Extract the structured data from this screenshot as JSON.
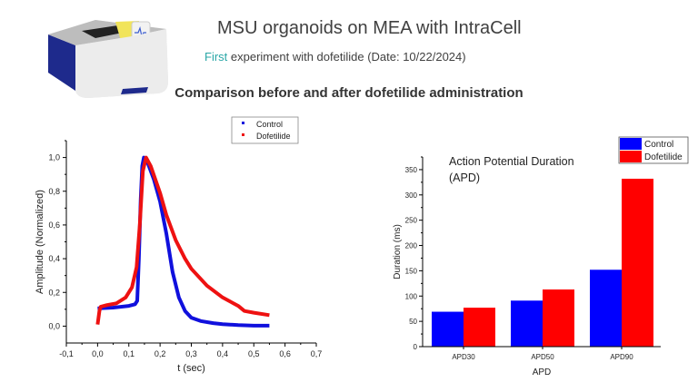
{
  "header": {
    "title": "MSU organoids on MEA with IntraCell",
    "subtitle_highlight": "First",
    "subtitle_rest": " experiment with dofetilide (Date: 10/22/2024)",
    "heading": "Comparison before and after dofetilide administration",
    "highlight_color": "#2aa7a7"
  },
  "chart_data": [
    {
      "type": "line",
      "title": "",
      "xlabel": "t (sec)",
      "ylabel": "Amplitude (Normalized)",
      "xlim": [
        -0.1,
        0.7
      ],
      "ylim": [
        -0.1,
        1.1
      ],
      "xticks": [
        -0.1,
        0,
        0.1,
        0.2,
        0.3,
        0.4,
        0.5,
        0.6,
        0.7
      ],
      "xtick_labels": [
        "-0,1",
        "0,0",
        "0,1",
        "0,2",
        "0,3",
        "0,4",
        "0,5",
        "0,6",
        "0,7"
      ],
      "yticks": [
        0,
        0.2,
        0.4,
        0.6,
        0.8,
        1.0
      ],
      "ytick_labels": [
        "0,0",
        "0,2",
        "0,4",
        "0,6",
        "0,8",
        "1,0"
      ],
      "grid": false,
      "legend": "top-right",
      "series": [
        {
          "name": "Control",
          "color": "#1010dd",
          "x": [
            0,
            0.05,
            0.1,
            0.12,
            0.127,
            0.132,
            0.138,
            0.143,
            0.148,
            0.16,
            0.18,
            0.2,
            0.22,
            0.24,
            0.26,
            0.28,
            0.3,
            0.33,
            0.37,
            0.4,
            0.45,
            0.5,
            0.55
          ],
          "y": [
            0.105,
            0.11,
            0.12,
            0.13,
            0.15,
            0.4,
            0.75,
            0.95,
            1.0,
            0.97,
            0.87,
            0.74,
            0.55,
            0.32,
            0.17,
            0.09,
            0.05,
            0.03,
            0.018,
            0.012,
            0.006,
            0.003,
            0.003
          ]
        },
        {
          "name": "Dofetilide",
          "color": "#ee1111",
          "x": [
            0,
            0.003,
            0.006,
            0.01,
            0.03,
            0.06,
            0.09,
            0.11,
            0.125,
            0.135,
            0.145,
            0.155,
            0.17,
            0.2,
            0.22,
            0.25,
            0.28,
            0.3,
            0.35,
            0.4,
            0.45,
            0.47,
            0.5,
            0.55
          ],
          "y": [
            0.01,
            0.05,
            0.09,
            0.115,
            0.125,
            0.135,
            0.17,
            0.23,
            0.35,
            0.6,
            0.92,
            1.0,
            0.95,
            0.79,
            0.66,
            0.51,
            0.4,
            0.34,
            0.24,
            0.17,
            0.12,
            0.09,
            0.08,
            0.065
          ]
        }
      ]
    },
    {
      "type": "bar",
      "title": "Action Potential Duration (APD)",
      "title_lines": [
        "Action Potential Duration",
        "(APD)"
      ],
      "xlabel": "APD",
      "ylabel": "Duration (ms)",
      "categories": [
        "APD30",
        "APD50",
        "APD90"
      ],
      "ylim": [
        0,
        375
      ],
      "yticks": [
        0,
        50,
        100,
        150,
        200,
        250,
        300,
        350
      ],
      "ytick_labels": [
        "0",
        "50",
        "100",
        "150",
        "200",
        "250",
        "300",
        "350"
      ],
      "grid": false,
      "legend": "top-right",
      "series": [
        {
          "name": "Control",
          "color": "#0000ff",
          "values": [
            69,
            91,
            152
          ]
        },
        {
          "name": "Dofetilide",
          "color": "#ff0000",
          "values": [
            77,
            113,
            332
          ]
        }
      ]
    }
  ]
}
